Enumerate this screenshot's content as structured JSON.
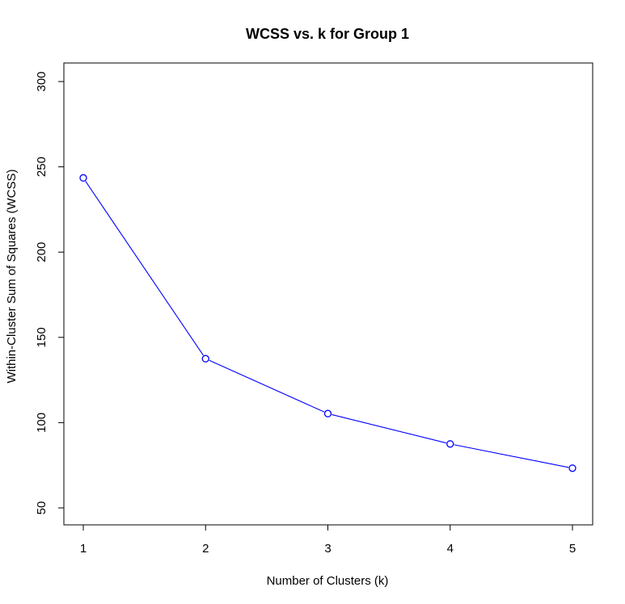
{
  "chart_data": {
    "type": "line",
    "title": "WCSS vs. k for Group 1",
    "xlabel": "Number of Clusters (k)",
    "ylabel": "Within-Cluster Sum of Squares (WCSS)",
    "x": [
      1,
      2,
      3,
      4,
      5
    ],
    "xlim": [
      1,
      5
    ],
    "ylim": [
      50,
      300
    ],
    "xticks": [
      "1",
      "2",
      "3",
      "4",
      "5"
    ],
    "yticks": [
      "50",
      "100",
      "150",
      "200",
      "250",
      "300"
    ],
    "series": [
      {
        "values": [
          243.5,
          137.5,
          105.3,
          87.5,
          73.3
        ],
        "color": "#0000ff",
        "marker": "open-circle"
      }
    ],
    "grid": false,
    "legend": "none"
  }
}
